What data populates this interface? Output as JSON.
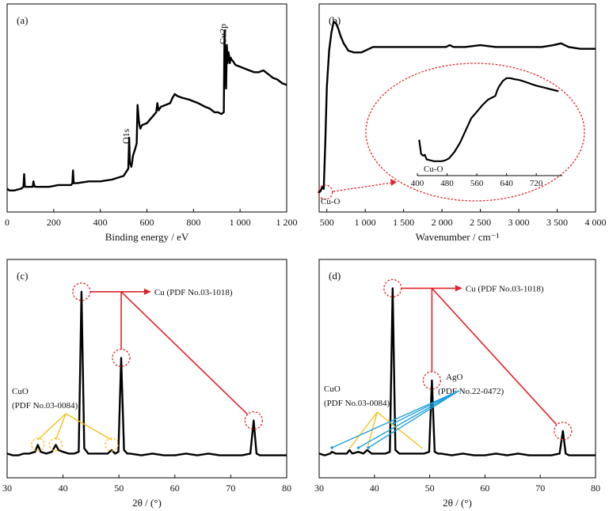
{
  "colors": {
    "curve": "#000000",
    "annotation_red": "#e0232b",
    "annotation_yellow": "#f2c018",
    "annotation_blue": "#1e9fdb"
  },
  "chart_data": [
    {
      "panel": "(a)",
      "type": "line",
      "xlabel": "Binding energy / eV",
      "ylabel": "",
      "xlim": [
        0,
        1200
      ],
      "xticks": [
        0,
        200,
        400,
        600,
        800,
        1000,
        1200
      ],
      "xtick_labels": [
        "0",
        "200",
        "400",
        "600",
        "800",
        "1 000",
        "1 200"
      ],
      "ylim": [
        0,
        100
      ],
      "grid": false,
      "peak_labels": [
        {
          "text": "O1s",
          "x": 531
        },
        {
          "text": "Cu2p",
          "x": 933
        }
      ],
      "series": [
        {
          "x": [
            0,
            10,
            30,
            60,
            70,
            73,
            76,
            80,
            100,
            110,
            113,
            116,
            120,
            140,
            180,
            220,
            260,
            275,
            280,
            283,
            286,
            290,
            300,
            350,
            400,
            450,
            500,
            510,
            520,
            524,
            527,
            531,
            533,
            537,
            540,
            550,
            556,
            560,
            565,
            568,
            572,
            575,
            580,
            600,
            620,
            640,
            645,
            650,
            660,
            680,
            700,
            710,
            720,
            730,
            750,
            780,
            800,
            820,
            850,
            870,
            890,
            905,
            920,
            930,
            933,
            936,
            940,
            943,
            946,
            950,
            953,
            956,
            960,
            963,
            970,
            980,
            1000,
            1020,
            1040,
            1060,
            1080,
            1100,
            1120,
            1140,
            1160,
            1180,
            1200
          ],
          "y": [
            5,
            4,
            4,
            5,
            6,
            13,
            6,
            6,
            6,
            6,
            9,
            7,
            6,
            6,
            6,
            7,
            7,
            7,
            8,
            15,
            8,
            8,
            8,
            9,
            9,
            10,
            12,
            14,
            16,
            33,
            19,
            18,
            17,
            20,
            23,
            27,
            30,
            51,
            43,
            40,
            38,
            39,
            40,
            41,
            44,
            47,
            52,
            48,
            50,
            51,
            52,
            55,
            57,
            56,
            55,
            54,
            53,
            52,
            50,
            49,
            47,
            47,
            46,
            47,
            92,
            72,
            60,
            84,
            74,
            80,
            78,
            74,
            77,
            76,
            75,
            73,
            72,
            71,
            70,
            69,
            69,
            70,
            68,
            66,
            65,
            63,
            62
          ]
        }
      ]
    },
    {
      "panel": "(b)",
      "type": "line",
      "xlabel": "Wavenumber / cm⁻¹",
      "ylabel": "",
      "xlim": [
        400,
        4000
      ],
      "xticks": [
        500,
        1000,
        1500,
        2000,
        2500,
        3000,
        3500,
        4000
      ],
      "xtick_labels": [
        "500",
        "1 000",
        "1 500",
        "2 000",
        "2 500",
        "3 000",
        "3 500",
        "4 000"
      ],
      "ylim": [
        0,
        100
      ],
      "grid": false,
      "peak_label": {
        "text": "Cu-O",
        "x": 480
      },
      "series": [
        {
          "x": [
            400,
            420,
            440,
            460,
            480,
            500,
            530,
            560,
            590,
            620,
            650,
            680,
            720,
            780,
            850,
            950,
            1100,
            1300,
            1500,
            1700,
            1900,
            2050,
            2100,
            2150,
            2200,
            2300,
            2500,
            2700,
            2900,
            3100,
            3300,
            3450,
            3550,
            3650,
            3800,
            4000
          ],
          "y": [
            2,
            3,
            5,
            4,
            30,
            60,
            80,
            90,
            96,
            95,
            92,
            88,
            84,
            80,
            79,
            79,
            82,
            82,
            82,
            82,
            82,
            82,
            83,
            82,
            82,
            82,
            83,
            82,
            82,
            82,
            82,
            83,
            84,
            82,
            81,
            81
          ]
        }
      ],
      "inset": {
        "xlim": [
          400,
          790
        ],
        "xticks": [
          400,
          480,
          560,
          640,
          720
        ],
        "xtick_labels": [
          "400",
          "480",
          "560",
          "640",
          "720"
        ],
        "label": "Cu-O",
        "series": [
          {
            "x": [
              405,
              410,
              415,
              420,
              425,
              435,
              445,
              455,
              465,
              475,
              485,
              500,
              515,
              530,
              545,
              560,
              575,
              590,
              600,
              610,
              615,
              620,
              625,
              630,
              640,
              650,
              660,
              675,
              690,
              705,
              720,
              740,
              760,
              780
            ],
            "y": [
              35,
              20,
              18,
              19,
              14,
              13,
              12,
              12,
              12,
              13,
              15,
              22,
              32,
              45,
              58,
              65,
              72,
              78,
              80,
              82,
              88,
              92,
              95,
              98,
              101,
              101,
              100,
              99,
              97,
              95,
              93,
              91,
              89,
              87
            ]
          }
        ]
      }
    },
    {
      "panel": "(c)",
      "type": "line",
      "xlabel": "2θ / (°)",
      "ylabel": "",
      "xlim": [
        30,
        80
      ],
      "xticks": [
        30,
        40,
        50,
        60,
        70,
        80
      ],
      "xtick_labels": [
        "30",
        "40",
        "50",
        "60",
        "70",
        "80"
      ],
      "ylim": [
        0,
        100
      ],
      "grid": false,
      "annotations": [
        {
          "text": "Cu (PDF No.03-1018)",
          "peaks_x": [
            43.3,
            50.4,
            74.1
          ]
        },
        {
          "text_lines": [
            "CuO",
            "(PDF No.03-0084)"
          ],
          "peaks_x": [
            35.5,
            38.7,
            48.7
          ]
        }
      ],
      "series": [
        {
          "x": [
            30,
            31,
            32,
            33,
            34,
            35,
            35.5,
            36,
            37,
            38,
            38.7,
            39.2,
            40,
            41,
            42,
            42.8,
            43.3,
            43.8,
            44.5,
            45,
            46,
            47,
            48,
            48.7,
            49.3,
            49.9,
            50.4,
            50.9,
            51.5,
            52,
            54,
            56,
            58,
            60,
            62,
            64,
            66,
            68,
            70,
            72,
            73.5,
            74.1,
            74.6,
            75.2,
            76,
            77,
            78,
            79,
            80
          ],
          "y": [
            3,
            2,
            2,
            3,
            3,
            4,
            8,
            4,
            3,
            4,
            8,
            5,
            4,
            3,
            3,
            4,
            96,
            6,
            3,
            3,
            3,
            3,
            3,
            5,
            3,
            4,
            58,
            5,
            3,
            3,
            2,
            3,
            2,
            2,
            3,
            2,
            3,
            2,
            2,
            2,
            3,
            22,
            3,
            2,
            2,
            2,
            2,
            2,
            2
          ]
        }
      ]
    },
    {
      "panel": "(d)",
      "type": "line",
      "xlabel": "2θ / (°)",
      "ylabel": "",
      "xlim": [
        30,
        80
      ],
      "xticks": [
        30,
        40,
        50,
        60,
        70,
        80
      ],
      "xtick_labels": [
        "30",
        "40",
        "50",
        "60",
        "70",
        "80"
      ],
      "ylim": [
        0,
        100
      ],
      "grid": false,
      "annotations": [
        {
          "text": "Cu (PDF No.03-1018)",
          "peaks_x": [
            43.3,
            50.4,
            74.1
          ]
        },
        {
          "text_lines": [
            "CuO",
            "(PDF No.03-0084)"
          ],
          "peaks_x": [
            35.5,
            38.7,
            48.7
          ]
        },
        {
          "text_lines": [
            "AgO",
            "(PDF No.22-0472)"
          ],
          "peaks_x": [
            32.3,
            37.1,
            38.9,
            43.5
          ]
        }
      ],
      "series": [
        {
          "x": [
            30,
            31,
            32,
            32.3,
            33,
            34,
            35,
            35.5,
            36,
            37.1,
            38,
            38.7,
            39.5,
            40,
            41,
            42,
            42.8,
            43.3,
            43.8,
            44.5,
            45,
            46,
            47,
            48,
            49,
            49.9,
            50.4,
            50.9,
            51.5,
            52,
            54,
            56,
            58,
            60,
            62,
            64,
            66,
            68,
            70,
            72,
            73.5,
            74.1,
            74.6,
            75.2,
            76,
            78,
            80
          ],
          "y": [
            3,
            2,
            3,
            4,
            3,
            3,
            3,
            5,
            3,
            4,
            3,
            5,
            3,
            3,
            3,
            3,
            4,
            98,
            5,
            3,
            3,
            3,
            3,
            3,
            3,
            4,
            45,
            4,
            3,
            3,
            2,
            3,
            2,
            2,
            3,
            2,
            3,
            2,
            2,
            2,
            3,
            16,
            3,
            2,
            2,
            2,
            2
          ]
        }
      ]
    }
  ]
}
